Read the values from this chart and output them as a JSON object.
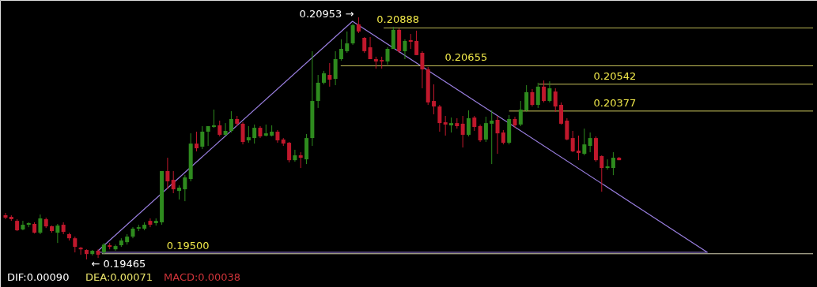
{
  "chart_data": {
    "type": "candlestick",
    "categories": [
      null,
      null,
      null,
      null,
      null,
      null,
      null,
      null,
      null,
      null,
      null,
      null,
      null,
      null,
      null,
      null,
      null,
      null,
      null,
      null,
      null,
      null,
      null,
      null,
      null,
      null,
      null,
      null,
      null,
      null,
      null,
      null,
      null,
      null,
      null,
      null,
      null,
      null,
      null,
      null,
      null,
      null,
      null,
      null,
      null,
      null,
      null,
      null,
      null,
      null,
      null,
      null,
      null,
      null,
      null,
      null,
      null,
      null,
      null,
      null,
      null,
      null,
      null,
      null,
      null,
      null,
      null,
      null,
      null,
      null,
      null,
      null,
      null,
      null,
      null,
      null,
      null,
      null,
      null,
      null,
      null,
      null,
      null,
      null,
      null,
      null,
      null,
      null,
      null,
      null,
      null,
      null,
      null,
      null,
      null,
      null,
      null,
      null,
      null,
      null,
      null,
      null,
      null,
      null,
      null,
      null,
      null
    ],
    "ohlc": [
      [
        0.19736,
        0.19751,
        0.19712,
        0.19722
      ],
      [
        0.19727,
        0.19736,
        0.19702,
        0.19712
      ],
      [
        0.19702,
        0.19712,
        0.19639,
        0.19644
      ],
      [
        0.19649,
        0.19702,
        0.19644,
        0.19678
      ],
      [
        0.19678,
        0.19693,
        0.19663,
        0.19688
      ],
      [
        0.19683,
        0.19693,
        0.19624,
        0.19629
      ],
      [
        0.19629,
        0.19741,
        0.1962,
        0.19717
      ],
      [
        0.19712,
        0.19722,
        0.19658,
        0.19668
      ],
      [
        0.19668,
        0.19673,
        0.19629,
        0.19639
      ],
      [
        0.19629,
        0.19683,
        0.19566,
        0.19673
      ],
      [
        0.19678,
        0.19693,
        0.1962,
        0.19634
      ],
      [
        0.1962,
        0.19629,
        0.19581,
        0.19595
      ],
      [
        0.19595,
        0.19605,
        0.19508,
        0.19542
      ],
      [
        0.19537,
        0.19542,
        0.19494,
        0.19527
      ],
      [
        0.19523,
        0.19527,
        0.19465,
        0.19498
      ],
      [
        0.19498,
        0.19523,
        0.19489,
        0.19518
      ],
      [
        0.19518,
        0.19527,
        0.19474,
        0.19494
      ],
      [
        0.19508,
        0.19566,
        0.19498,
        0.19556
      ],
      [
        0.19552,
        0.19566,
        0.19527,
        0.19542
      ],
      [
        0.19527,
        0.19556,
        0.19518,
        0.19547
      ],
      [
        0.19552,
        0.19595,
        0.19542,
        0.19581
      ],
      [
        0.19571,
        0.1962,
        0.19556,
        0.19605
      ],
      [
        0.19605,
        0.19663,
        0.19595,
        0.19654
      ],
      [
        0.19654,
        0.19678,
        0.19639,
        0.19663
      ],
      [
        0.19654,
        0.19693,
        0.19644,
        0.19678
      ],
      [
        0.19702,
        0.19717,
        0.19663,
        0.19678
      ],
      [
        0.19688,
        0.19717,
        0.19673,
        0.19702
      ],
      [
        0.19693,
        0.20008,
        0.19678,
        0.20008
      ],
      [
        0.20008,
        0.2009,
        0.19896,
        0.19945
      ],
      [
        0.19954,
        0.20008,
        0.19872,
        0.19896
      ],
      [
        0.19886,
        0.1992,
        0.19833,
        0.19906
      ],
      [
        0.19896,
        0.19983,
        0.19823,
        0.19969
      ],
      [
        0.19959,
        0.2024,
        0.19945,
        0.20177
      ],
      [
        0.20177,
        0.2025,
        0.20129,
        0.20148
      ],
      [
        0.20158,
        0.20284,
        0.20143,
        0.2025
      ],
      [
        0.2025,
        0.20284,
        0.20163,
        0.20284
      ],
      [
        0.20279,
        0.20386,
        0.20274,
        0.20289
      ],
      [
        0.20289,
        0.20318,
        0.20221,
        0.20231
      ],
      [
        0.20231,
        0.20303,
        0.20226,
        0.20255
      ],
      [
        0.20255,
        0.20376,
        0.20245,
        0.20328
      ],
      [
        0.20328,
        0.20347,
        0.20284,
        0.20299
      ],
      [
        0.20299,
        0.20308,
        0.20172,
        0.20187
      ],
      [
        0.20197,
        0.20284,
        0.20182,
        0.20216
      ],
      [
        0.20211,
        0.20294,
        0.20177,
        0.20274
      ],
      [
        0.20274,
        0.20284,
        0.20211,
        0.20221
      ],
      [
        0.20226,
        0.20294,
        0.20221,
        0.2024
      ],
      [
        0.20226,
        0.20289,
        0.20221,
        0.2025
      ],
      [
        0.2025,
        0.2026,
        0.20182,
        0.20197
      ],
      [
        0.20202,
        0.20211,
        0.20163,
        0.20177
      ],
      [
        0.20182,
        0.20187,
        0.20061,
        0.20075
      ],
      [
        0.20075,
        0.20139,
        0.20066,
        0.20105
      ],
      [
        0.20105,
        0.20124,
        0.20027,
        0.2009
      ],
      [
        0.2008,
        0.20236,
        0.20051,
        0.20211
      ],
      [
        0.20211,
        0.20745,
        0.20163,
        0.20439
      ],
      [
        0.20439,
        0.20599,
        0.20396,
        0.20551
      ],
      [
        0.20551,
        0.20624,
        0.20541,
        0.20609
      ],
      [
        0.20599,
        0.20672,
        0.20527,
        0.2057
      ],
      [
        0.20575,
        0.20745,
        0.20536,
        0.20696
      ],
      [
        0.20696,
        0.20818,
        0.20687,
        0.20759
      ],
      [
        0.20745,
        0.20866,
        0.20735,
        0.20793
      ],
      [
        0.20793,
        0.20915,
        0.20784,
        0.20905
      ],
      [
        0.2091,
        0.20953,
        0.20856,
        0.20866
      ],
      [
        0.20827,
        0.20832,
        0.20735,
        0.20745
      ],
      [
        0.20769,
        0.20832,
        0.20696,
        0.20696
      ],
      [
        0.20696,
        0.20711,
        0.20638,
        0.20682
      ],
      [
        0.20691,
        0.20711,
        0.20638,
        0.20682
      ],
      [
        0.20682,
        0.20769,
        0.20662,
        0.20759
      ],
      [
        0.20759,
        0.20895,
        0.20759,
        0.20876
      ],
      [
        0.20876,
        0.20885,
        0.20735,
        0.20745
      ],
      [
        0.20745,
        0.20818,
        0.20696,
        0.20808
      ],
      [
        0.20813,
        0.20851,
        0.20759,
        0.20803
      ],
      [
        0.20808,
        0.20871,
        0.20721,
        0.20721
      ],
      [
        0.20735,
        0.20745,
        0.20517,
        0.20633
      ],
      [
        0.20633,
        0.20648,
        0.20415,
        0.2043
      ],
      [
        0.20439,
        0.20541,
        0.20357,
        0.20405
      ],
      [
        0.20405,
        0.20415,
        0.2025,
        0.20303
      ],
      [
        0.20308,
        0.20347,
        0.20226,
        0.20294
      ],
      [
        0.20289,
        0.20337,
        0.20245,
        0.20303
      ],
      [
        0.20303,
        0.20333,
        0.20269,
        0.20284
      ],
      [
        0.20299,
        0.20347,
        0.20153,
        0.20231
      ],
      [
        0.20231,
        0.20381,
        0.20221,
        0.20333
      ],
      [
        0.20337,
        0.20347,
        0.20255,
        0.20279
      ],
      [
        0.20284,
        0.20294,
        0.20187,
        0.20197
      ],
      [
        0.20202,
        0.20342,
        0.20187,
        0.20303
      ],
      [
        0.20299,
        0.20381,
        0.20051,
        0.20318
      ],
      [
        0.20323,
        0.20347,
        0.20114,
        0.2024
      ],
      [
        0.20245,
        0.2026,
        0.20172,
        0.20182
      ],
      [
        0.20182,
        0.20352,
        0.20172,
        0.20328
      ],
      [
        0.20328,
        0.20342,
        0.20274,
        0.20289
      ],
      [
        0.20294,
        0.20439,
        0.20284,
        0.20386
      ],
      [
        0.20381,
        0.20536,
        0.20371,
        0.20493
      ],
      [
        0.20493,
        0.20512,
        0.20405,
        0.20415
      ],
      [
        0.20415,
        0.20551,
        0.20396,
        0.20527
      ],
      [
        0.20527,
        0.20565,
        0.2043,
        0.20439
      ],
      [
        0.20439,
        0.2056,
        0.2043,
        0.20517
      ],
      [
        0.20497,
        0.20517,
        0.20371,
        0.20405
      ],
      [
        0.20415,
        0.2043,
        0.20294,
        0.20299
      ],
      [
        0.20318,
        0.20333,
        0.20197,
        0.20202
      ],
      [
        0.20211,
        0.20255,
        0.20124,
        0.20129
      ],
      [
        0.20134,
        0.20226,
        0.20075,
        0.20119
      ],
      [
        0.20114,
        0.20269,
        0.20105,
        0.20172
      ],
      [
        0.20163,
        0.20245,
        0.20124,
        0.20211
      ],
      [
        0.20211,
        0.20221,
        0.20066,
        0.20075
      ],
      [
        0.201,
        0.20105,
        0.19881,
        0.20027
      ],
      [
        0.20027,
        0.2008,
        0.20017,
        0.20037
      ],
      [
        0.20027,
        0.20124,
        0.19983,
        0.2009
      ],
      [
        0.2009,
        0.20095,
        0.20075,
        0.20075
      ]
    ],
    "ref_lines": [
      {
        "axis": "y",
        "value": 0.20888,
        "label": "0.20888",
        "color": "#e8e26a"
      },
      {
        "axis": "y",
        "value": 0.20655,
        "label": "0.20655",
        "color": "#e8e26a"
      },
      {
        "axis": "y",
        "value": 0.20542,
        "label": "0.20542",
        "color": "#e8e26a"
      },
      {
        "axis": "y",
        "value": 0.20377,
        "label": "0.20377",
        "color": "#e8e26a"
      },
      {
        "axis": "y",
        "value": 0.195,
        "label": "0.19500",
        "color": "#f2eecc"
      }
    ],
    "annotations": [
      "0.20953 →",
      "← 0.19465",
      "DIF:0.00090",
      "DEA:0.00071",
      "MACD:0.00038"
    ]
  }
}
